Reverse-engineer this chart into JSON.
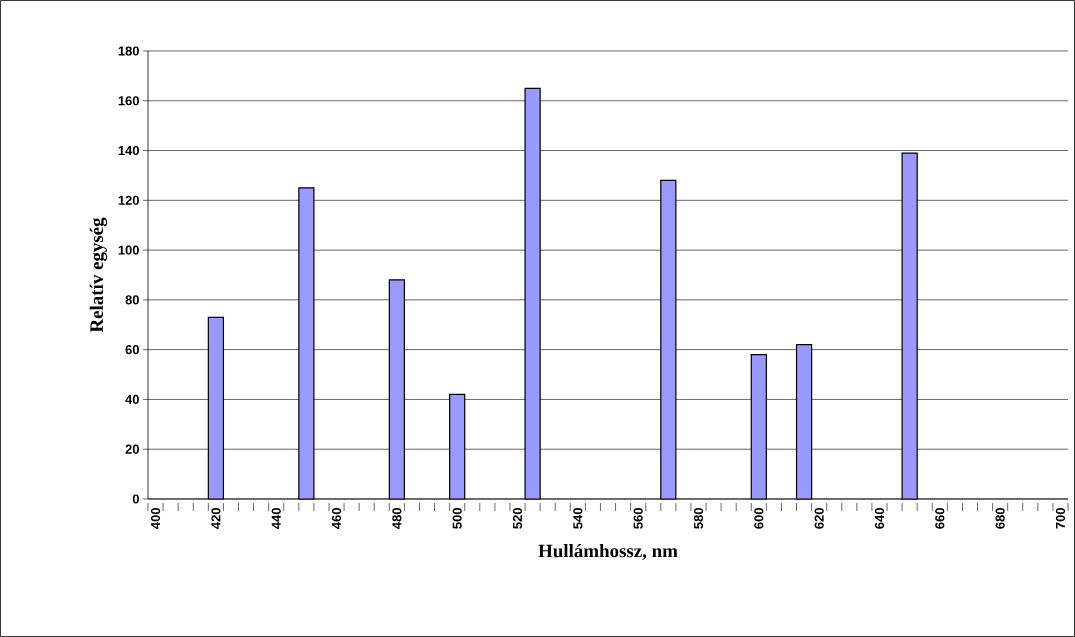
{
  "chart_data": {
    "type": "bar",
    "xlabel": "Hullámhossz, nm",
    "ylabel": "Relatív egység",
    "categories": [
      "400",
      null,
      null,
      null,
      "420",
      null,
      null,
      null,
      "440",
      null,
      null,
      null,
      "460",
      null,
      null,
      null,
      "480",
      null,
      null,
      null,
      "500",
      null,
      null,
      null,
      "520",
      null,
      null,
      null,
      "540",
      null,
      null,
      null,
      "560",
      null,
      null,
      null,
      "580",
      null,
      null,
      null,
      "600",
      null,
      null,
      null,
      "620",
      null,
      null,
      null,
      "640",
      null,
      null,
      null,
      "660",
      null,
      null,
      null,
      "680",
      null,
      null,
      null,
      "700"
    ],
    "values": [
      null,
      null,
      null,
      null,
      73,
      null,
      null,
      null,
      null,
      null,
      125,
      null,
      null,
      null,
      null,
      null,
      88,
      null,
      null,
      null,
      42,
      null,
      null,
      null,
      null,
      165,
      null,
      null,
      null,
      null,
      null,
      null,
      null,
      null,
      128,
      null,
      null,
      null,
      null,
      null,
      58,
      null,
      null,
      62,
      null,
      null,
      null,
      null,
      null,
      null,
      139,
      null,
      null,
      null,
      null,
      null,
      null,
      null,
      null,
      null,
      null
    ],
    "color": "#9999ff",
    "ylim": [
      0,
      180
    ],
    "yticks": [
      0,
      20,
      40,
      60,
      80,
      100,
      120,
      140,
      160,
      180
    ],
    "grid": "y"
  }
}
